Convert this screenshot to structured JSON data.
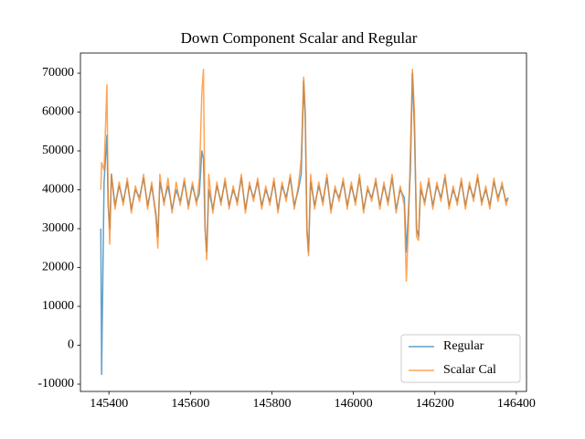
{
  "chart_data": {
    "type": "line",
    "title": "Down Component Scalar and Regular",
    "x": [
      145380,
      145382,
      145388,
      145395,
      145398,
      145402,
      145406,
      145415,
      145425,
      145435,
      145445,
      145455,
      145465,
      145475,
      145485,
      145495,
      145505,
      145515,
      145520,
      145525,
      145535,
      145545,
      145555,
      145565,
      145575,
      145585,
      145595,
      145605,
      145615,
      145622,
      145628,
      145632,
      145636,
      145640,
      145645,
      145655,
      145665,
      145675,
      145685,
      145695,
      145705,
      145715,
      145725,
      145735,
      145745,
      145755,
      145765,
      145775,
      145785,
      145795,
      145805,
      145815,
      145825,
      145835,
      145845,
      145855,
      145865,
      145872,
      145878,
      145882,
      145886,
      145890,
      145895,
      145905,
      145915,
      145925,
      145935,
      145945,
      145955,
      145965,
      145975,
      145985,
      145995,
      146005,
      146015,
      146025,
      146035,
      146045,
      146055,
      146065,
      146075,
      146085,
      146095,
      146105,
      146115,
      146125,
      146130,
      146135,
      146140,
      146145,
      146150,
      146155,
      146160,
      146165,
      146175,
      146185,
      146195,
      146205,
      146215,
      146225,
      146235,
      146245,
      146255,
      146265,
      146275,
      146285,
      146295,
      146305,
      146315,
      146325,
      146335,
      146345,
      146355,
      146365,
      146375,
      146380
    ],
    "series": [
      {
        "name": "Regular",
        "color": "#1f77b4",
        "values": [
          30000,
          -7500,
          42000,
          54000,
          36000,
          30000,
          44000,
          36000,
          41000,
          37000,
          42000,
          35000,
          40000,
          38000,
          43000,
          36000,
          41000,
          34000,
          28000,
          42000,
          37000,
          41000,
          35000,
          40000,
          37000,
          42000,
          36000,
          41000,
          37000,
          39000,
          50000,
          48000,
          30000,
          24000,
          40000,
          35000,
          41000,
          37000,
          42000,
          36000,
          40000,
          37000,
          43000,
          35000,
          41000,
          38000,
          42000,
          36000,
          40000,
          37000,
          42000,
          35000,
          41000,
          38000,
          43000,
          36000,
          40000,
          44000,
          68000,
          58000,
          30000,
          24000,
          42000,
          36000,
          41000,
          37000,
          43000,
          35000,
          40000,
          38000,
          42000,
          36000,
          41000,
          37000,
          43000,
          35000,
          40000,
          38000,
          42000,
          36000,
          41000,
          37000,
          43000,
          35000,
          40000,
          38000,
          24000,
          34000,
          45000,
          70000,
          55000,
          30000,
          28000,
          40000,
          37000,
          42000,
          36000,
          41000,
          38000,
          43000,
          36000,
          40000,
          37000,
          42000,
          36000,
          41000,
          38000,
          43000,
          37000,
          40000,
          36000,
          42000,
          38000,
          41000,
          37000,
          38000
        ]
      },
      {
        "name": "Scalar Cal",
        "color": "#ff7f0e",
        "values": [
          40000,
          47000,
          45000,
          67000,
          38000,
          26000,
          44000,
          35000,
          42000,
          36000,
          43000,
          34000,
          41000,
          37000,
          44000,
          35000,
          42000,
          33000,
          25000,
          44000,
          36000,
          43000,
          34000,
          42000,
          36000,
          43000,
          35000,
          42000,
          36000,
          43000,
          65000,
          71000,
          30000,
          22000,
          44000,
          34000,
          42000,
          36000,
          43000,
          35000,
          41000,
          36000,
          44000,
          34000,
          42000,
          37000,
          43000,
          35000,
          41000,
          36000,
          43000,
          34000,
          42000,
          37000,
          44000,
          35000,
          41000,
          48000,
          69000,
          60000,
          29000,
          23000,
          44000,
          35000,
          42000,
          36000,
          44000,
          34000,
          41000,
          37000,
          43000,
          35000,
          42000,
          36000,
          44000,
          34000,
          41000,
          37000,
          43000,
          35000,
          42000,
          36000,
          44000,
          34000,
          41000,
          36000,
          16500,
          30000,
          50000,
          71000,
          60000,
          28000,
          27000,
          42000,
          36000,
          43000,
          35000,
          42000,
          37000,
          44000,
          35000,
          41000,
          36000,
          43000,
          35000,
          42000,
          37000,
          44000,
          36000,
          41000,
          35000,
          43000,
          37000,
          42000,
          36000,
          38000
        ]
      }
    ],
    "xlim": [
      145330,
      146425
    ],
    "ylim": [
      -11880,
      75180
    ],
    "xticks": [
      145400,
      145600,
      145800,
      146000,
      146200,
      146400
    ],
    "yticks": [
      -10000,
      0,
      10000,
      20000,
      30000,
      40000,
      50000,
      60000,
      70000
    ],
    "legend": "lower right"
  }
}
